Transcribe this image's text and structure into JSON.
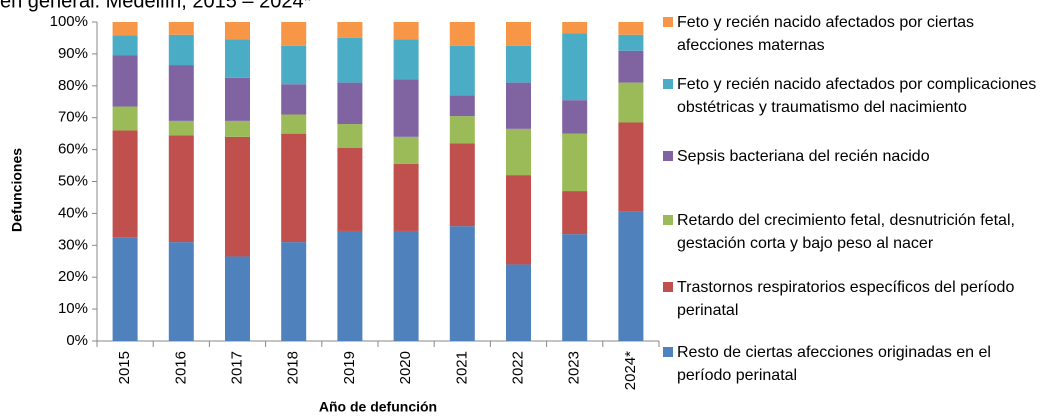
{
  "chart_data": {
    "type": "stacked_bar",
    "title": "en general. Medellín, 2015 – 2024*",
    "x_label": "Año de defunción",
    "y_label": "Defunciones",
    "categories": [
      "2015",
      "2016",
      "2017",
      "2018",
      "2019",
      "2020",
      "2021",
      "2022",
      "2023",
      "2024*"
    ],
    "series": [
      {
        "name": "Resto de ciertas afecciones originadas en el período perinatal",
        "color": "#4f81bd",
        "values": [
          32.5,
          31,
          26.5,
          31,
          34.5,
          34.5,
          36,
          24,
          33.5,
          40.5
        ]
      },
      {
        "name": "Trastornos respiratorios específicos del período perinatal",
        "color": "#c0504d",
        "values": [
          33.5,
          33.5,
          37.5,
          34,
          26,
          21,
          26,
          28,
          13.5,
          28
        ]
      },
      {
        "name": "Retardo del crecimiento fetal, desnutrición fetal, gestación corta y bajo peso al nacer",
        "color": "#9bbb59",
        "values": [
          7.5,
          4.5,
          5,
          6,
          7.5,
          8.5,
          8.5,
          14.5,
          18,
          12.5
        ]
      },
      {
        "name": "Sepsis bacteriana del recién nacido",
        "color": "#8064a2",
        "values": [
          16,
          17.5,
          13.5,
          9.5,
          13,
          18,
          6.5,
          14.5,
          10.5,
          10
        ]
      },
      {
        "name": "Feto y recién nacido afectados por complicaciones obstétricas y traumatismo del nacimiento",
        "color": "#4bacc6",
        "values": [
          6.3,
          9.5,
          12,
          12,
          14,
          12.5,
          15.5,
          11.5,
          21,
          5
        ]
      },
      {
        "name": "Feto y recién nacido afectados por ciertas afecciones maternas",
        "color": "#f79646",
        "values": [
          4.2,
          4,
          5.5,
          7.5,
          5,
          5.5,
          7.5,
          7.5,
          3.5,
          4
        ]
      }
    ],
    "ylim": [
      0,
      100
    ],
    "yticks": [
      {
        "value": 0,
        "label": "0%"
      },
      {
        "value": 10,
        "label": "10%"
      },
      {
        "value": 20,
        "label": "20%"
      },
      {
        "value": 30,
        "label": "30%"
      },
      {
        "value": 40,
        "label": "40%"
      },
      {
        "value": 50,
        "label": "50%"
      },
      {
        "value": 60,
        "label": "60%"
      },
      {
        "value": 70,
        "label": "70%"
      },
      {
        "value": 80,
        "label": "80%"
      },
      {
        "value": 90,
        "label": "90%"
      },
      {
        "value": 100,
        "label": "100%"
      }
    ],
    "legend": "right"
  }
}
